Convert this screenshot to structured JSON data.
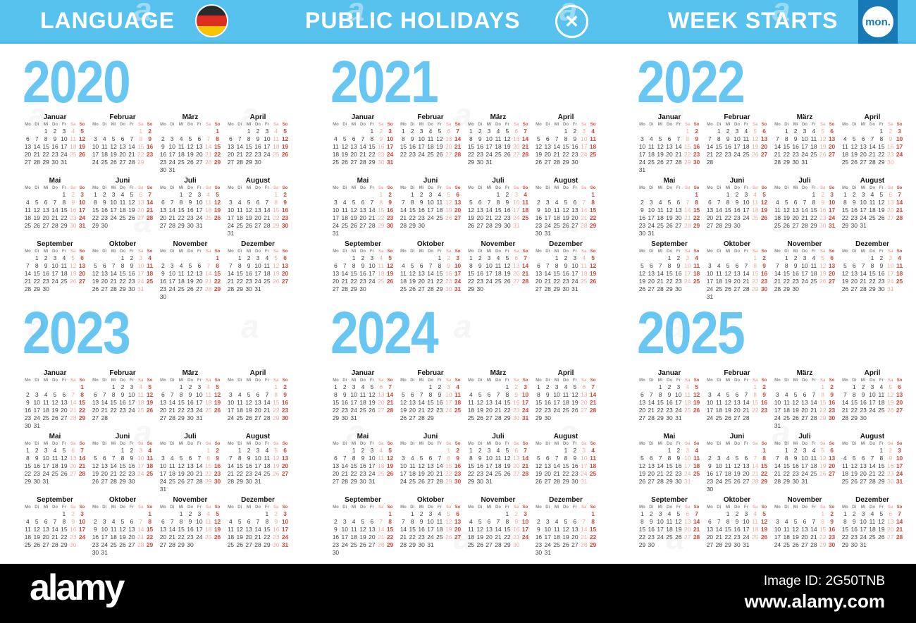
{
  "header": {
    "bar_color": "#58c2ef",
    "accent_color": "#1779b5",
    "language_label": "LANGUAGE",
    "language_flag_icon": "german-flag",
    "flag_colors": [
      "#2b2b2b",
      "#dd2c22",
      "#f8c500"
    ],
    "public_holidays_label": "PUBLIC HOLIDAYS",
    "public_holidays_icon": "✕",
    "week_starts_label": "WEEK STARTS",
    "week_starts_value": "mon."
  },
  "calendar": {
    "year_color": "#68c6f3",
    "day_color": "#3e3e3e",
    "saturday_color": "#eeaca4",
    "sunday_color": "#d1473a",
    "weekday_headers": [
      "Mo",
      "Di",
      "Mi",
      "Do",
      "Fr",
      "Sa",
      "So"
    ],
    "years": [
      {
        "label": "2020",
        "months": [
          {
            "name": "Januar",
            "start": 2,
            "days": 31
          },
          {
            "name": "Februar",
            "start": 5,
            "days": 29
          },
          {
            "name": "März",
            "start": 6,
            "days": 31
          },
          {
            "name": "April",
            "start": 2,
            "days": 30
          },
          {
            "name": "Mai",
            "start": 4,
            "days": 31
          },
          {
            "name": "Juni",
            "start": 0,
            "days": 30
          },
          {
            "name": "Juli",
            "start": 2,
            "days": 31
          },
          {
            "name": "August",
            "start": 5,
            "days": 31
          },
          {
            "name": "September",
            "start": 1,
            "days": 30
          },
          {
            "name": "Oktober",
            "start": 3,
            "days": 31
          },
          {
            "name": "November",
            "start": 6,
            "days": 30
          },
          {
            "name": "Dezember",
            "start": 1,
            "days": 31
          }
        ]
      },
      {
        "label": "2021",
        "months": [
          {
            "name": "Januar",
            "start": 4,
            "days": 31
          },
          {
            "name": "Februar",
            "start": 0,
            "days": 28
          },
          {
            "name": "März",
            "start": 0,
            "days": 31
          },
          {
            "name": "April",
            "start": 3,
            "days": 30
          },
          {
            "name": "Mai",
            "start": 5,
            "days": 31
          },
          {
            "name": "Juni",
            "start": 1,
            "days": 30
          },
          {
            "name": "Juli",
            "start": 3,
            "days": 31
          },
          {
            "name": "August",
            "start": 6,
            "days": 31
          },
          {
            "name": "September",
            "start": 2,
            "days": 30
          },
          {
            "name": "Oktober",
            "start": 4,
            "days": 31
          },
          {
            "name": "November",
            "start": 0,
            "days": 30
          },
          {
            "name": "Dezember",
            "start": 2,
            "days": 31
          }
        ]
      },
      {
        "label": "2022",
        "months": [
          {
            "name": "Januar",
            "start": 5,
            "days": 31
          },
          {
            "name": "Februar",
            "start": 1,
            "days": 28
          },
          {
            "name": "März",
            "start": 1,
            "days": 31
          },
          {
            "name": "April",
            "start": 4,
            "days": 30
          },
          {
            "name": "Mai",
            "start": 6,
            "days": 31
          },
          {
            "name": "Juni",
            "start": 2,
            "days": 30
          },
          {
            "name": "Juli",
            "start": 4,
            "days": 31
          },
          {
            "name": "August",
            "start": 0,
            "days": 31
          },
          {
            "name": "September",
            "start": 3,
            "days": 30
          },
          {
            "name": "Oktober",
            "start": 5,
            "days": 31
          },
          {
            "name": "November",
            "start": 1,
            "days": 30
          },
          {
            "name": "Dezember",
            "start": 3,
            "days": 31
          }
        ]
      },
      {
        "label": "2023",
        "months": [
          {
            "name": "Januar",
            "start": 6,
            "days": 31
          },
          {
            "name": "Februar",
            "start": 2,
            "days": 28
          },
          {
            "name": "März",
            "start": 2,
            "days": 31
          },
          {
            "name": "April",
            "start": 5,
            "days": 30
          },
          {
            "name": "Mai",
            "start": 0,
            "days": 31
          },
          {
            "name": "Juni",
            "start": 3,
            "days": 30
          },
          {
            "name": "Juli",
            "start": 5,
            "days": 31
          },
          {
            "name": "August",
            "start": 1,
            "days": 31
          },
          {
            "name": "September",
            "start": 4,
            "days": 30
          },
          {
            "name": "Oktober",
            "start": 6,
            "days": 31
          },
          {
            "name": "November",
            "start": 2,
            "days": 30
          },
          {
            "name": "Dezember",
            "start": 4,
            "days": 31
          }
        ]
      },
      {
        "label": "2024",
        "months": [
          {
            "name": "Januar",
            "start": 0,
            "days": 31
          },
          {
            "name": "Februar",
            "start": 3,
            "days": 29
          },
          {
            "name": "März",
            "start": 4,
            "days": 31
          },
          {
            "name": "April",
            "start": 0,
            "days": 30
          },
          {
            "name": "Mai",
            "start": 2,
            "days": 31
          },
          {
            "name": "Juni",
            "start": 5,
            "days": 30
          },
          {
            "name": "Juli",
            "start": 0,
            "days": 31
          },
          {
            "name": "August",
            "start": 3,
            "days": 31
          },
          {
            "name": "September",
            "start": 6,
            "days": 30
          },
          {
            "name": "Oktober",
            "start": 1,
            "days": 31
          },
          {
            "name": "November",
            "start": 4,
            "days": 30
          },
          {
            "name": "Dezember",
            "start": 6,
            "days": 31
          }
        ]
      },
      {
        "label": "2025",
        "months": [
          {
            "name": "Januar",
            "start": 2,
            "days": 31
          },
          {
            "name": "Februar",
            "start": 5,
            "days": 28
          },
          {
            "name": "März",
            "start": 5,
            "days": 31
          },
          {
            "name": "April",
            "start": 1,
            "days": 30
          },
          {
            "name": "Mai",
            "start": 3,
            "days": 31
          },
          {
            "name": "Juni",
            "start": 6,
            "days": 30
          },
          {
            "name": "Juli",
            "start": 1,
            "days": 31
          },
          {
            "name": "August",
            "start": 4,
            "days": 31
          },
          {
            "name": "September",
            "start": 0,
            "days": 30
          },
          {
            "name": "Oktober",
            "start": 2,
            "days": 31
          },
          {
            "name": "November",
            "start": 5,
            "days": 30
          },
          {
            "name": "Dezember",
            "start": 0,
            "days": 31
          }
        ]
      }
    ]
  },
  "footer": {
    "background": "#000000",
    "logo_text": "alamy",
    "image_id": "Image ID: 2G50TNB",
    "website": "www.alamy.com"
  },
  "watermark_glyph": "a"
}
